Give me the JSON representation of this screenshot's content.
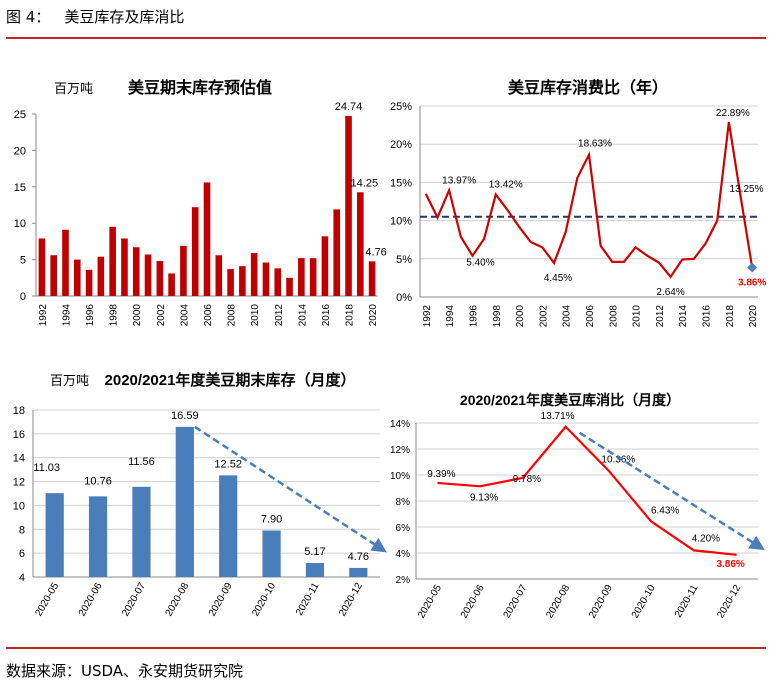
{
  "figure_label": "图 4：",
  "figure_title": "美豆库存及库消比",
  "source": "数据来源：USDA、永安期货研究院",
  "colors": {
    "rule": "#c0242a",
    "bar_red": "#c00000",
    "line_red": "#d00000",
    "bar_blue": "#4a7ebb",
    "dash_blue": "#4a7ebb",
    "highlight": "#ff0000",
    "marker": "#4f81bd"
  },
  "chart_data": [
    {
      "type": "bar",
      "title": "美豆期末库存预估值",
      "unit_label": "百万吨",
      "categories": [
        "1992",
        "1993",
        "1994",
        "1995",
        "1996",
        "1997",
        "1998",
        "1999",
        "2000",
        "2001",
        "2002",
        "2003",
        "2004",
        "2005",
        "2006",
        "2007",
        "2008",
        "2009",
        "2010",
        "2011",
        "2012",
        "2013",
        "2014",
        "2015",
        "2016",
        "2017",
        "2018",
        "2019",
        "2020"
      ],
      "x_tick_labels": [
        "1992",
        "1994",
        "1996",
        "1998",
        "2000",
        "2002",
        "2004",
        "2006",
        "2008",
        "2010",
        "2012",
        "2014",
        "2016",
        "2018",
        "2020"
      ],
      "values": [
        7.9,
        5.6,
        9.1,
        5.0,
        3.6,
        5.4,
        9.5,
        7.9,
        6.7,
        5.7,
        4.8,
        3.1,
        6.9,
        12.2,
        15.6,
        5.6,
        3.7,
        4.1,
        5.9,
        4.6,
        3.8,
        2.5,
        5.2,
        5.2,
        8.2,
        11.9,
        24.74,
        14.25,
        4.76
      ],
      "data_labels": {
        "26": "24.74",
        "27": "14.25",
        "28": "4.76"
      },
      "ylim": [
        0,
        25
      ],
      "y_ticks": [
        "0",
        "5",
        "10",
        "15",
        "20",
        "25"
      ],
      "grid": false
    },
    {
      "type": "line",
      "title": "美豆库存消费比（年）",
      "x": [
        "1992",
        "1993",
        "1994",
        "1995",
        "1996",
        "1997",
        "1998",
        "1999",
        "2000",
        "2001",
        "2002",
        "2003",
        "2004",
        "2005",
        "2006",
        "2007",
        "2008",
        "2009",
        "2010",
        "2011",
        "2012",
        "2013",
        "2014",
        "2015",
        "2016",
        "2017",
        "2018",
        "2019",
        "2020"
      ],
      "x_tick_labels": [
        "1992",
        "1994",
        "1996",
        "1998",
        "2000",
        "2002",
        "2004",
        "2006",
        "2008",
        "2010",
        "2012",
        "2014",
        "2016",
        "2018",
        "2020"
      ],
      "values": [
        13.5,
        10.4,
        13.97,
        7.9,
        5.4,
        7.6,
        13.42,
        11.4,
        9.2,
        7.2,
        6.5,
        4.45,
        8.5,
        15.6,
        18.63,
        6.7,
        4.6,
        4.6,
        6.5,
        5.4,
        4.5,
        2.64,
        4.9,
        5.0,
        7.0,
        10.0,
        22.89,
        13.25,
        3.86
      ],
      "data_labels": {
        "2": "13.97%",
        "4": "5.40%",
        "6": "13.42%",
        "11": "4.45%",
        "14": "18.63%",
        "21": "2.64%",
        "26": "22.89%",
        "27": "13.25%",
        "28": "3.86%"
      },
      "ylim": [
        0,
        25
      ],
      "y_ticks": [
        "0%",
        "5%",
        "10%",
        "15%",
        "20%",
        "25%"
      ],
      "reference_line": 10.5,
      "grid": true
    },
    {
      "type": "bar",
      "title": "2020/2021年度美豆期末库存（月度）",
      "unit_label": "百万吨",
      "categories": [
        "2020-05",
        "2020-06",
        "2020-07",
        "2020-08",
        "2020-09",
        "2020-10",
        "2020-11",
        "2020-12"
      ],
      "values": [
        11.03,
        10.76,
        11.56,
        16.59,
        12.52,
        7.9,
        5.17,
        4.76
      ],
      "data_labels": [
        "11.03",
        "10.76",
        "11.56",
        "16.59",
        "12.52",
        "7.90",
        "5.17",
        "4.76"
      ],
      "ylim": [
        4,
        18
      ],
      "y_ticks": [
        "4",
        "6",
        "8",
        "10",
        "12",
        "14",
        "16",
        "18"
      ],
      "trend_arrow": {
        "from": [
          3,
          16.59
        ],
        "to": [
          7.6,
          6.2
        ]
      },
      "grid": true
    },
    {
      "type": "line",
      "title": "2020/2021年度美豆库消比（月度）",
      "x": [
        "2020-05",
        "2020-06",
        "2020-07",
        "2020-08",
        "2020-09",
        "2020-10",
        "2020-11",
        "2020-12"
      ],
      "values": [
        9.39,
        9.13,
        9.78,
        13.71,
        10.36,
        6.43,
        4.2,
        3.86
      ],
      "data_labels": [
        "9.39%",
        "9.13%",
        "9.78%",
        "13.71%",
        "10.36%",
        "6.43%",
        "4.20%",
        "3.86%"
      ],
      "ylim": [
        2,
        14
      ],
      "y_ticks": [
        "2%",
        "4%",
        "6%",
        "8%",
        "10%",
        "12%",
        "14%"
      ],
      "trend_arrow": {
        "from": [
          3,
          13.71
        ],
        "to": [
          7.6,
          4.2
        ]
      },
      "grid": true
    }
  ]
}
